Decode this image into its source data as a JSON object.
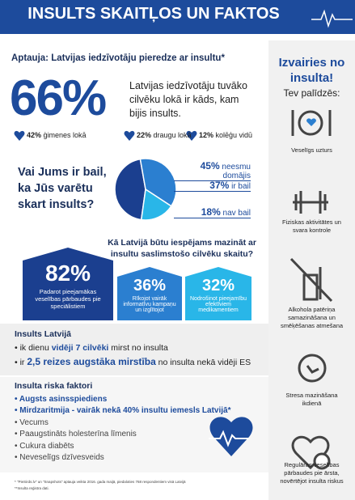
{
  "header": {
    "title": "INSULTS SKAITĻOS UN FAKTOS"
  },
  "survey": {
    "title": "Aptauja: Latvijas iedzīvotāju pieredze ar insultu*",
    "big": "66%",
    "big_text": [
      "Latvijas iedzīvotāju tuvāko",
      "cilvēku lokā ir kāds, kam",
      "bijis insults."
    ],
    "circles": [
      {
        "pct": "42%",
        "label": "ģimenes lokā"
      },
      {
        "pct": "22%",
        "label": "draugu lokā"
      },
      {
        "pct": "12%",
        "label": "kolēģu vidū"
      }
    ]
  },
  "fear": {
    "question": [
      "Vai Jums ir bail,",
      "ka Jūs varētu",
      "skart insults?"
    ],
    "slices": [
      {
        "value": 45,
        "value_label": "45%",
        "label": "neesmu domājis",
        "color": "#1b3f8f"
      },
      {
        "value": 37,
        "value_label": "37%",
        "label": "ir bail",
        "color": "#2b7fd0"
      },
      {
        "value": 18,
        "value_label": "18%",
        "label": "nav bail",
        "color": "#29b6e8"
      }
    ]
  },
  "reduce": {
    "question": [
      "Kā Latvijā būtu iespējams mazināt ar",
      "insultu saslimstošo cilvēku skaitu?"
    ],
    "boxes": [
      {
        "pct": "82%",
        "text": "Padarot pieejamākas veselības pārbaudes pie speciālistiem"
      },
      {
        "pct": "36%",
        "text": "Rīkojot vairāk informatīvu kampaņu un izglītojot"
      },
      {
        "pct": "32%",
        "text": "Nodrošinot pieejamību efektīviem medikamentiem"
      }
    ]
  },
  "latvia": {
    "title": "Insults Latvijā",
    "bullets": [
      [
        "ik dienu ",
        "vidēji 7 cilvēki",
        " mirst no insulta"
      ],
      [
        "ir ",
        "2,5 reizes augstāka mirstība",
        " no insulta nekā vidēji ES"
      ]
    ]
  },
  "risks": {
    "title": "Insulta riska faktori",
    "bold": [
      "Augsts asinsspiediens",
      "Mirdzaritmija - vairāk nekā 40% insultu iemesls Latvijā*"
    ],
    "items": [
      "Vecums",
      "Paaugstināts holesterīna līmenis",
      "Cukura diabēts",
      "Neveselīgs dzīvesveids"
    ]
  },
  "footnotes": [
    "* \"PieSirds.lv\" un \"Snapshots\" aptauja veikta 2016. gada maijā, piedaloties 768 respondentiem visā Latvijā",
    "**Insulta reģistra dati."
  ],
  "side": {
    "title": [
      "Izvairies no",
      "insulta!"
    ],
    "subtitle": "Tev palīdzēs:",
    "items": [
      [
        "Veselīgs uzturs"
      ],
      [
        "Fiziskas aktivitātes un",
        "svara kontrole"
      ],
      [
        "Alkohola patēriņa",
        "samazināšana un",
        "smēķēšanas atmešana"
      ],
      [
        "Stresa mazināšana",
        "ikdienā"
      ],
      [
        "Regulāras veselības",
        "pārbaudes pie ārsta,",
        "novērtējot insulta riskus"
      ]
    ]
  }
}
